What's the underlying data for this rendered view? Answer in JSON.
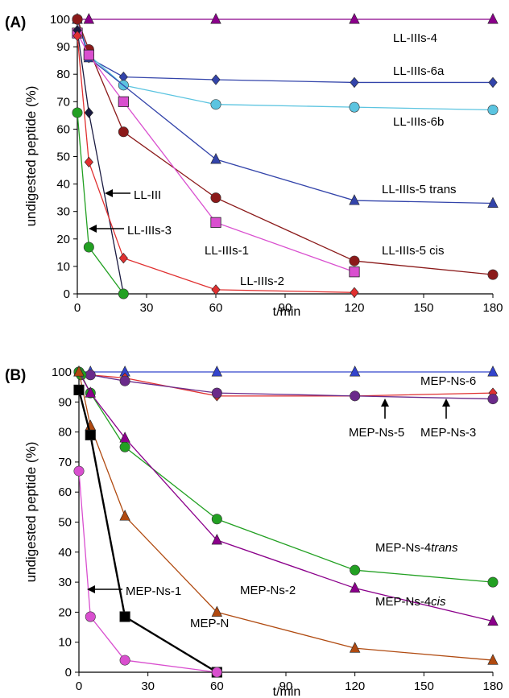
{
  "chart_data": [
    {
      "type": "line",
      "panel_label": "(A)",
      "xlabel": "t/min",
      "ylabel": "undigested peptide (%)",
      "xlim": [
        0,
        180
      ],
      "ylim": [
        0,
        100
      ],
      "xticks": [
        0,
        30,
        60,
        90,
        120,
        150,
        180
      ],
      "yticks": [
        0,
        10,
        20,
        30,
        40,
        50,
        60,
        70,
        80,
        90,
        100
      ],
      "grid": false,
      "legend": "inline labels",
      "series": [
        {
          "name": "LL-IIIs-4",
          "color": "#8b008b",
          "marker": "triangle",
          "x": [
            0,
            5,
            60,
            120,
            180
          ],
          "y": [
            100,
            100,
            100,
            100,
            100
          ]
        },
        {
          "name": "LL-IIIs-6a",
          "color": "#3344aa",
          "marker": "diamond",
          "x": [
            0,
            5,
            20,
            60,
            120,
            180
          ],
          "y": [
            100,
            86,
            79,
            78,
            77,
            77
          ]
        },
        {
          "name": "LL-IIIs-6b",
          "color": "#5bc4e0",
          "marker": "circle",
          "x": [
            0,
            5,
            20,
            60,
            120,
            180
          ],
          "y": [
            100,
            87,
            76,
            69,
            68,
            67
          ]
        },
        {
          "name": "LL-IIIs-5 trans",
          "color": "#3344aa",
          "marker": "triangle",
          "x": [
            0,
            5,
            60,
            120,
            180
          ],
          "y": [
            100,
            86,
            49,
            34,
            33
          ]
        },
        {
          "name": "LL-IIIs-5 cis",
          "color": "#8b1a1a",
          "marker": "circle",
          "x": [
            0,
            5,
            20,
            60,
            120,
            180
          ],
          "y": [
            100,
            89,
            59,
            35,
            12,
            7
          ]
        },
        {
          "name": "LL-IIIs-1",
          "color": "#d94fcf",
          "marker": "square",
          "x": [
            0,
            5,
            20,
            60,
            120
          ],
          "y": [
            95,
            87,
            70,
            26,
            8
          ]
        },
        {
          "name": "LL-III",
          "color": "#1a1a40",
          "marker": "diamond",
          "x": [
            0,
            5,
            20
          ],
          "y": [
            96,
            66,
            0
          ]
        },
        {
          "name": "LL-IIIs-2",
          "color": "#e03030",
          "marker": "diamond",
          "x": [
            0,
            5,
            20,
            60,
            120
          ],
          "y": [
            94,
            48,
            13,
            1.5,
            0.5
          ]
        },
        {
          "name": "LL-IIIs-3",
          "color": "#22a022",
          "marker": "circle",
          "x": [
            0,
            5,
            20
          ],
          "y": [
            66,
            17,
            0
          ]
        }
      ]
    },
    {
      "type": "line",
      "panel_label": "(B)",
      "xlabel": "t/min",
      "ylabel": "undigested peptide (%)",
      "xlim": [
        0,
        180
      ],
      "ylim": [
        0,
        100
      ],
      "xticks": [
        0,
        30,
        60,
        90,
        120,
        150,
        180
      ],
      "yticks": [
        0,
        10,
        20,
        30,
        40,
        50,
        60,
        70,
        80,
        90,
        100
      ],
      "grid": false,
      "legend": "inline labels",
      "series": [
        {
          "name": "MEP-Ns-6",
          "color": "#3344cc",
          "marker": "triangle",
          "x": [
            0,
            5,
            20,
            60,
            120,
            180
          ],
          "y": [
            100,
            100,
            100,
            100,
            100,
            100
          ]
        },
        {
          "name": "MEP-Ns-3",
          "color": "#e03030",
          "marker": "diamond",
          "x": [
            0,
            5,
            20,
            60,
            120,
            180
          ],
          "y": [
            100,
            99,
            98,
            92,
            92,
            93
          ]
        },
        {
          "name": "MEP-Ns-5",
          "color": "#6a2a8a",
          "marker": "circle",
          "x": [
            0,
            5,
            20,
            60,
            120,
            180
          ],
          "y": [
            100,
            99,
            97,
            93,
            92,
            91
          ]
        },
        {
          "name": "MEP-Ns-4trans",
          "color": "#22a022",
          "marker": "circle",
          "x": [
            0,
            1,
            5,
            20,
            60,
            120,
            180
          ],
          "y": [
            100,
            99,
            93,
            75,
            51,
            34,
            30
          ]
        },
        {
          "name": "MEP-Ns-4cis",
          "color": "#8b008b",
          "marker": "triangle",
          "x": [
            0,
            5,
            20,
            60,
            120,
            180
          ],
          "y": [
            100,
            93,
            78,
            44,
            28,
            17
          ]
        },
        {
          "name": "MEP-Ns-2",
          "color": "#b04a10",
          "marker": "triangle",
          "x": [
            0,
            5,
            20,
            60,
            120,
            180
          ],
          "y": [
            100,
            82,
            52,
            20,
            8,
            4
          ]
        },
        {
          "name": "MEP-N",
          "color": "#000000",
          "marker": "square",
          "x": [
            0,
            5,
            20,
            60
          ],
          "y": [
            94,
            79,
            18.5,
            0
          ]
        },
        {
          "name": "MEP-Ns-1",
          "color": "#d94fcf",
          "marker": "circle",
          "x": [
            0,
            5,
            20,
            60
          ],
          "y": [
            67,
            18.5,
            4,
            0
          ]
        }
      ]
    }
  ],
  "annotations_a": {
    "ll_iiis_4": "LL-IIIs-4",
    "ll_iiis_6a": "LL-IIIs-6a",
    "ll_iiis_6b": "LL-IIIs-6b",
    "ll_iiis_5_trans": "LL-IIIs-5 trans",
    "ll_iiis_5_cis": "LL-IIIs-5 cis",
    "ll_iiis_1": "LL-IIIs-1",
    "ll_iiis_2": "LL-IIIs-2",
    "ll_iii": "LL-III",
    "ll_iiis_3": "LL-IIIs-3"
  },
  "annotations_b": {
    "mep_ns_6": "MEP-Ns-6",
    "mep_ns_5": "MEP-Ns-5",
    "mep_ns_3": "MEP-Ns-3",
    "mep_ns_4trans_base": "MEP-Ns-4",
    "mep_ns_4trans_suffix": "trans",
    "mep_ns_4cis_base": "MEP-Ns-4",
    "mep_ns_4cis_suffix": "cis",
    "mep_ns_2": "MEP-Ns-2",
    "mep_ns_1": "MEP-Ns-1",
    "mep_n": "MEP-N"
  }
}
